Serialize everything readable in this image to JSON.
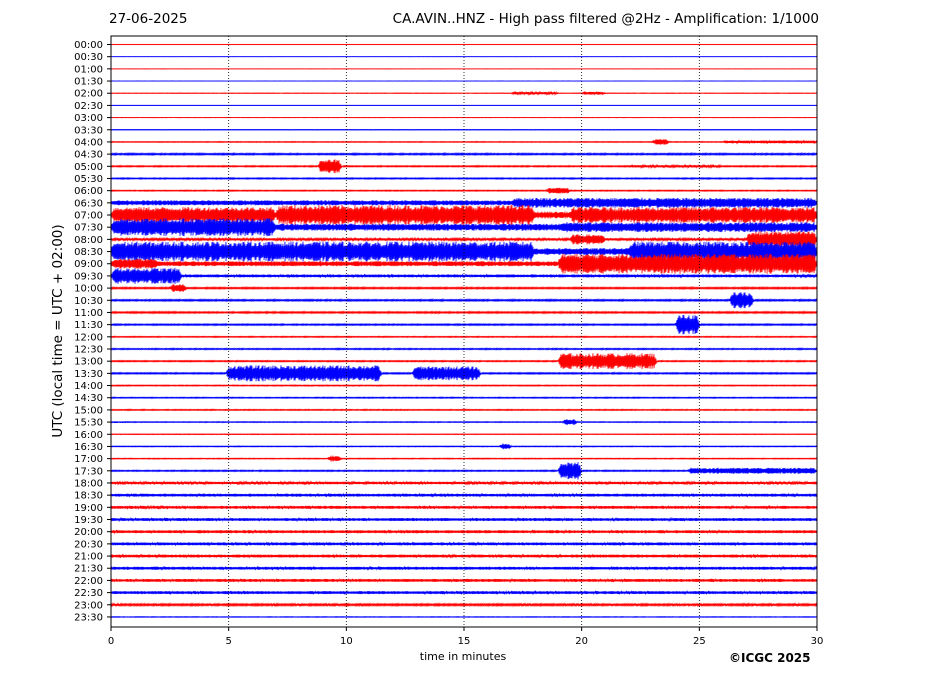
{
  "header": {
    "date": "27-06-2025",
    "title": "CA.AVIN..HNZ - High pass filtered @2Hz - Amplification: 1/1000"
  },
  "credit": "©ICGC 2025",
  "colors": {
    "trace_a": "#ff0000",
    "trace_b": "#0000ff",
    "axis": "#000000",
    "grid": "#000000"
  },
  "chart_data": {
    "type": "line",
    "title": "CA.AVIN..HNZ - High pass filtered @2Hz - Amplification: 1/1000",
    "xlabel": "time in minutes",
    "ylabel": "UTC (local time = UTC + 02:00)",
    "xlim": [
      0,
      30
    ],
    "x_ticks": [
      0,
      5,
      10,
      15,
      20,
      25,
      30
    ],
    "x_tick_labels": [
      "0",
      "5",
      "10",
      "15",
      "20",
      "25",
      "30"
    ],
    "vertical_grid_at": [
      5,
      10,
      15,
      20,
      25
    ],
    "row_labels": [
      "00:00",
      "00:30",
      "01:00",
      "01:30",
      "02:00",
      "02:30",
      "03:00",
      "03:30",
      "04:00",
      "04:30",
      "05:00",
      "05:30",
      "06:00",
      "06:30",
      "07:00",
      "07:30",
      "08:00",
      "08:30",
      "09:00",
      "09:30",
      "10:00",
      "10:30",
      "11:00",
      "11:30",
      "12:00",
      "12:30",
      "13:00",
      "13:30",
      "14:00",
      "14:30",
      "15:00",
      "15:30",
      "16:00",
      "16:30",
      "17:00",
      "17:30",
      "18:00",
      "18:30",
      "19:00",
      "19:30",
      "20:00",
      "20:30",
      "21:00",
      "21:30",
      "22:00",
      "22:30",
      "23:00",
      "23:30"
    ],
    "noise_level": [
      0.1,
      0.1,
      0.1,
      0.1,
      0.2,
      0.1,
      0.1,
      0.2,
      0.4,
      0.8,
      0.6,
      0.6,
      0.5,
      2.5,
      3.5,
      3.5,
      1.2,
      3.5,
      2.5,
      1.5,
      0.8,
      0.8,
      0.8,
      0.7,
      0.5,
      0.6,
      0.6,
      0.7,
      0.5,
      0.5,
      0.5,
      0.4,
      0.3,
      0.4,
      0.4,
      0.6,
      1.3,
      1.5,
      1.5,
      1.5,
      1.5,
      1.5,
      1.5,
      1.5,
      1.5,
      1.5,
      1.0,
      0.3
    ],
    "events": [
      {
        "row": 4,
        "start": 17.0,
        "end": 19.0,
        "amp": 1.2
      },
      {
        "row": 4,
        "start": 20.0,
        "end": 21.0,
        "amp": 1.5
      },
      {
        "row": 8,
        "start": 23.0,
        "end": 23.7,
        "amp": 3
      },
      {
        "row": 8,
        "start": 26.0,
        "end": 30.0,
        "amp": 1.5
      },
      {
        "row": 10,
        "start": 8.8,
        "end": 9.8,
        "amp": 7
      },
      {
        "row": 10,
        "start": 22.0,
        "end": 26.0,
        "amp": 1.2
      },
      {
        "row": 12,
        "start": 18.5,
        "end": 19.5,
        "amp": 3
      },
      {
        "row": 13,
        "start": 17.0,
        "end": 30.0,
        "amp": 5
      },
      {
        "row": 14,
        "start": 0.0,
        "end": 7.0,
        "amp": 8
      },
      {
        "row": 14,
        "start": 7.0,
        "end": 18.0,
        "amp": 10
      },
      {
        "row": 14,
        "start": 19.5,
        "end": 30.0,
        "amp": 8
      },
      {
        "row": 15,
        "start": 0.0,
        "end": 7.0,
        "amp": 9
      },
      {
        "row": 15,
        "start": 19.0,
        "end": 30.0,
        "amp": 5
      },
      {
        "row": 16,
        "start": 19.5,
        "end": 21.0,
        "amp": 5
      },
      {
        "row": 16,
        "start": 27.0,
        "end": 30.0,
        "amp": 8
      },
      {
        "row": 17,
        "start": 0.0,
        "end": 18.0,
        "amp": 10
      },
      {
        "row": 17,
        "start": 22.0,
        "end": 30.0,
        "amp": 10
      },
      {
        "row": 18,
        "start": 0.0,
        "end": 2.0,
        "amp": 5
      },
      {
        "row": 18,
        "start": 19.0,
        "end": 30.0,
        "amp": 10
      },
      {
        "row": 19,
        "start": 0.0,
        "end": 3.0,
        "amp": 8
      },
      {
        "row": 20,
        "start": 2.5,
        "end": 3.2,
        "amp": 4
      },
      {
        "row": 21,
        "start": 26.3,
        "end": 27.3,
        "amp": 8
      },
      {
        "row": 23,
        "start": 24.0,
        "end": 25.0,
        "amp": 10
      },
      {
        "row": 26,
        "start": 19.0,
        "end": 23.2,
        "amp": 8
      },
      {
        "row": 27,
        "start": 4.9,
        "end": 11.5,
        "amp": 8
      },
      {
        "row": 27,
        "start": 12.8,
        "end": 15.7,
        "amp": 7
      },
      {
        "row": 31,
        "start": 19.2,
        "end": 19.8,
        "amp": 3
      },
      {
        "row": 33,
        "start": 16.5,
        "end": 17.0,
        "amp": 3
      },
      {
        "row": 34,
        "start": 9.2,
        "end": 9.8,
        "amp": 3
      },
      {
        "row": 35,
        "start": 19.0,
        "end": 20.0,
        "amp": 9
      },
      {
        "row": 35,
        "start": 24.5,
        "end": 30.0,
        "amp": 3
      }
    ]
  }
}
